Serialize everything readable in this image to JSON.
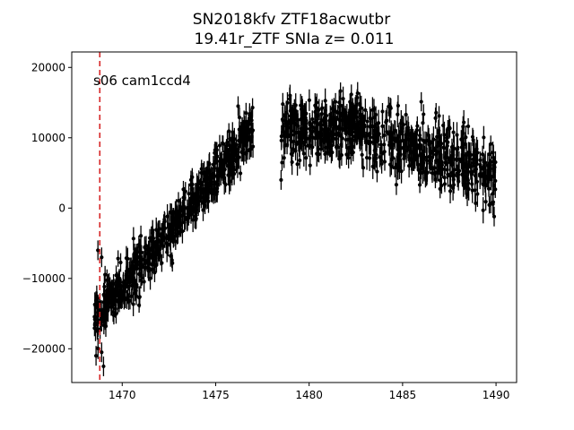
{
  "chart_data": {
    "type": "scatter",
    "title": [
      "SN2018kfv  ZTF18acwutbr",
      "19.41r_ZTF SNIa z= 0.011"
    ],
    "xlabel": "",
    "ylabel": "",
    "xlim": [
      1467.3,
      1491.1
    ],
    "ylim": [
      -24800,
      22200
    ],
    "xticks": [
      1470,
      1475,
      1480,
      1485,
      1490
    ],
    "yticks": [
      -20000,
      -10000,
      0,
      10000,
      20000
    ],
    "ytick_labels": [
      "−20000",
      "−10000",
      "0",
      "10000",
      "20000"
    ],
    "grid": false,
    "marker_color": "#000000",
    "vline": {
      "x": 1468.8,
      "color": "#d62728",
      "style": "dashed"
    },
    "annotation": "s06 cam1ccd4",
    "segments": [
      {
        "x_start": 1468.5,
        "x_end": 1477.0,
        "y_start": -16000,
        "y_end": 11000,
        "noise": 1700,
        "error": 1400,
        "n": 650
      },
      {
        "x_start": 1478.5,
        "x_end": 1483.0,
        "y_start": 11500,
        "y_end": 11500,
        "noise": 2200,
        "error": 1500,
        "n": 320
      },
      {
        "x_start": 1483.0,
        "x_end": 1490.0,
        "y_start": 10500,
        "y_end": 4500,
        "noise": 2300,
        "error": 1500,
        "n": 420
      }
    ],
    "outliers": [
      {
        "x": 1468.7,
        "y": -6000
      },
      {
        "x": 1468.9,
        "y": -7000
      },
      {
        "x": 1468.6,
        "y": -21000
      },
      {
        "x": 1468.9,
        "y": -20500
      },
      {
        "x": 1469.0,
        "y": -22500
      },
      {
        "x": 1478.5,
        "y": 4000
      },
      {
        "x": 1476.2,
        "y": 14500
      },
      {
        "x": 1489.9,
        "y": -1200
      }
    ]
  }
}
